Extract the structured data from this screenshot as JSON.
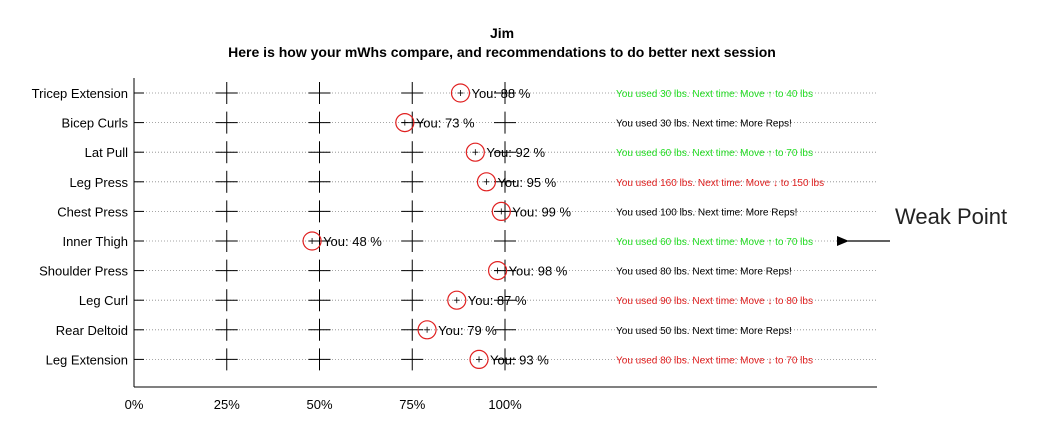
{
  "chart_data": {
    "type": "scatter",
    "title": "Jim",
    "subtitle": "Here is how your mWhs compare, and recommendations to do better next session",
    "categories": [
      "Tricep Extension",
      "Bicep Curls",
      "Lat Pull",
      "Leg Press",
      "Chest Press",
      "Inner Thigh",
      "Shoulder Press",
      "Leg Curl",
      "Rear Deltoid",
      "Leg Extension"
    ],
    "values": [
      88,
      73,
      92,
      95,
      99,
      48,
      98,
      87,
      79,
      93
    ],
    "value_labels": [
      "You: 88 %",
      "You: 73 %",
      "You: 92 %",
      "You: 95 %",
      "You: 99 %",
      "You: 48 %",
      "You: 98 %",
      "You: 87 %",
      "You: 79 %",
      "You: 93 %"
    ],
    "xlim": [
      0,
      100
    ],
    "x_ticks": [
      0,
      25,
      50,
      75,
      100
    ],
    "x_tick_labels": [
      "0%",
      "25%",
      "50%",
      "75%",
      "100%"
    ],
    "reference_marks": [
      25,
      50,
      75,
      100
    ],
    "grid": "dotted rows",
    "colors": {
      "marker_circle": "#e02020",
      "increase": "#22dd22",
      "decrease": "#e02020",
      "neutral": "#000000"
    },
    "recommendations": [
      {
        "text": "You used 30 lbs. Next time: Move ↑ to 40 lbs",
        "status": "increase"
      },
      {
        "text": "You used 30 lbs. Next time: More Reps!",
        "status": "neutral"
      },
      {
        "text": "You used 60 lbs. Next time: Move ↑ to 70 lbs",
        "status": "increase"
      },
      {
        "text": "You used 160 lbs. Next time: Move ↓ to 150 lbs",
        "status": "decrease"
      },
      {
        "text": "You used 100 lbs. Next time: More Reps!",
        "status": "neutral"
      },
      {
        "text": "You used 60 lbs. Next time: Move ↑ to 70 lbs",
        "status": "increase"
      },
      {
        "text": "You used 80 lbs. Next time: More Reps!",
        "status": "neutral"
      },
      {
        "text": "You used 90 lbs. Next time: Move ↓ to 80 lbs",
        "status": "decrease"
      },
      {
        "text": "You used 50 lbs. Next time: More Reps!",
        "status": "neutral"
      },
      {
        "text": "You used 80 lbs. Next time: Move ↓ to 70 lbs",
        "status": "decrease"
      }
    ],
    "annotation": {
      "text": "Weak Point",
      "points_to": "Inner Thigh"
    }
  }
}
